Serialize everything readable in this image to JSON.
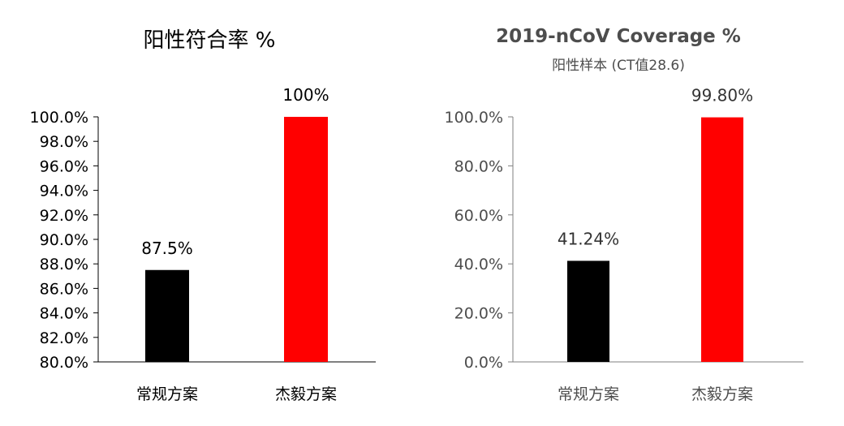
{
  "chart_data": [
    {
      "type": "bar",
      "title": "阳性符合率 %",
      "subtitle": "",
      "categories": [
        "常规方案",
        "杰毅方案"
      ],
      "values": [
        87.5,
        100
      ],
      "data_labels": [
        "87.5%",
        "100%"
      ],
      "bar_colors": [
        "#000000",
        "#ff0000"
      ],
      "ylim": [
        80,
        100
      ],
      "y_ticks": [
        "80.0%",
        "82.0%",
        "84.0%",
        "86.0%",
        "88.0%",
        "90.0%",
        "92.0%",
        "94.0%",
        "96.0%",
        "98.0%",
        "100.0%"
      ],
      "grid": false
    },
    {
      "type": "bar",
      "title": "2019-nCoV Coverage %",
      "subtitle": "阳性样本 (CT值28.6)",
      "categories": [
        "常规方案",
        "杰毅方案"
      ],
      "values": [
        41.24,
        99.8
      ],
      "data_labels": [
        "41.24%",
        "99.80%"
      ],
      "bar_colors": [
        "#000000",
        "#ff0000"
      ],
      "ylim": [
        0,
        100
      ],
      "y_ticks": [
        "0.0%",
        "20.0%",
        "40.0%",
        "60.0%",
        "80.0%",
        "100.0%"
      ],
      "grid": false
    }
  ]
}
